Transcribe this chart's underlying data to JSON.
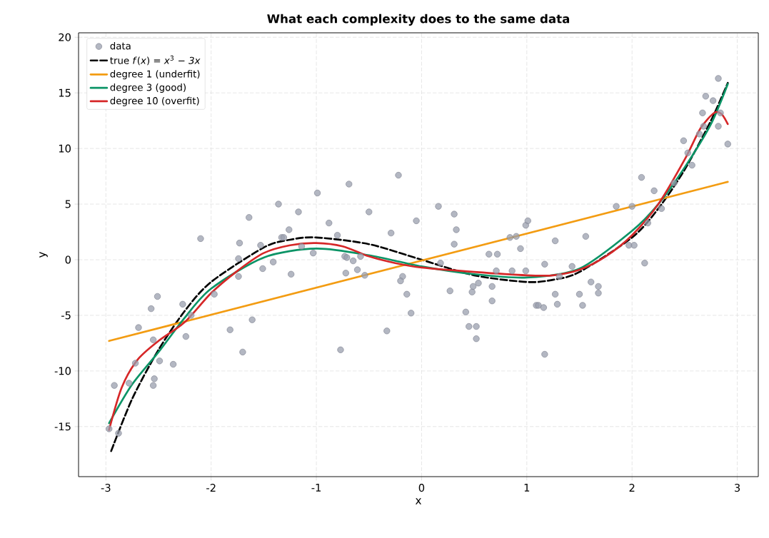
{
  "chart_data": {
    "type": "scatter",
    "title": "What each complexity does to the same data",
    "xlabel": "x",
    "ylabel": "y",
    "xlim": [
      -3.26,
      3.2
    ],
    "ylim": [
      -19.5,
      20.4
    ],
    "xticks": [
      -3,
      -2,
      -1,
      0,
      1,
      2,
      3
    ],
    "yticks": [
      -15,
      -10,
      -5,
      0,
      5,
      10,
      15,
      20
    ],
    "grid": true,
    "legend": "top left",
    "series": [
      {
        "name": "data",
        "marker": "circle",
        "color": "#9a9fae",
        "x": [
          -2.97,
          -2.92,
          -2.88,
          -2.78,
          -2.72,
          -2.69,
          -2.57,
          -2.55,
          -2.54,
          -2.55,
          -2.49,
          -2.51,
          -2.36,
          -2.27,
          -2.24,
          -2.19,
          -2.1,
          -1.97,
          -1.82,
          -1.64,
          -1.36,
          -1.17,
          -1.26,
          -1.33,
          -1.31,
          -1.73,
          -1.53,
          -1.74,
          -1.41,
          -1.51,
          -1.24,
          -1.74,
          -1.61,
          -1.7,
          -0.99,
          -0.69,
          -0.22,
          -0.88,
          -0.5,
          -0.8,
          -1.14,
          -1.03,
          -0.29,
          -0.05,
          0.16,
          0.31,
          0.33,
          0.31,
          -0.73,
          -0.71,
          -0.65,
          -0.58,
          -0.61,
          -0.72,
          -0.54,
          -0.18,
          -0.2,
          -0.14,
          -0.1,
          -0.33,
          -0.77,
          0.18,
          0.27,
          0.42,
          0.45,
          0.52,
          0.52,
          0.48,
          0.49,
          0.54,
          0.67,
          0.67,
          0.71,
          0.64,
          0.72,
          0.84,
          0.9,
          0.94,
          0.99,
          1.01,
          0.86,
          0.99,
          1.09,
          1.27,
          1.56,
          1.85,
          2.0,
          2.09,
          2.21,
          2.28,
          2.15,
          1.97,
          2.02,
          2.12,
          2.57,
          1.17,
          1.43,
          1.31,
          1.61,
          1.68,
          1.68,
          1.27,
          1.5,
          1.11,
          1.16,
          1.29,
          1.53,
          1.17,
          2.82,
          2.7,
          2.77,
          2.67,
          2.84,
          2.82,
          2.68,
          2.64,
          2.49,
          2.91,
          2.53,
          2.4
        ],
        "values": [
          -15.2,
          -11.3,
          -15.6,
          -11.1,
          -9.3,
          -6.1,
          -4.4,
          -7.2,
          -10.7,
          -11.3,
          -9.1,
          -3.3,
          -9.4,
          -4.0,
          -6.9,
          -5.0,
          1.9,
          -3.1,
          -6.3,
          3.8,
          5.0,
          4.3,
          2.7,
          2.0,
          2.0,
          1.5,
          1.3,
          0.1,
          -0.2,
          -0.8,
          -1.3,
          -1.5,
          -5.4,
          -8.3,
          6.0,
          6.8,
          7.6,
          3.3,
          4.3,
          2.2,
          1.2,
          0.6,
          2.4,
          3.5,
          4.8,
          4.1,
          2.7,
          1.4,
          0.3,
          0.2,
          -0.1,
          0.3,
          -0.9,
          -1.2,
          -1.4,
          -1.5,
          -1.9,
          -3.1,
          -4.8,
          -6.4,
          -8.1,
          -0.3,
          -2.8,
          -4.7,
          -6.0,
          -6.0,
          -7.1,
          -2.9,
          -2.4,
          -2.1,
          -2.4,
          -3.7,
          -1.0,
          0.5,
          0.5,
          2.0,
          2.1,
          1.0,
          3.1,
          3.5,
          -1.0,
          -1.0,
          -4.1,
          1.7,
          2.1,
          4.8,
          4.8,
          7.4,
          6.2,
          4.6,
          3.3,
          1.3,
          1.3,
          -0.3,
          8.5,
          -0.4,
          -0.6,
          -1.5,
          -2.0,
          -2.4,
          -3.0,
          -3.1,
          -3.1,
          -4.1,
          -4.3,
          -4.0,
          -4.1,
          -8.5,
          16.3,
          14.7,
          14.3,
          13.2,
          13.2,
          12.0,
          12.0,
          11.3,
          10.7,
          10.4,
          9.6,
          6.9
        ]
      },
      {
        "name": "true *f*(*x*) = *x*$^{3}$ − *3x*",
        "type": "line",
        "line_style": "dashed",
        "color": "#000000",
        "x": [
          -2.95,
          -2.75,
          -2.5,
          -2.25,
          -2,
          -1.5,
          -1.25,
          -1,
          -0.5,
          0,
          0.5,
          1,
          1.25,
          1.5,
          2,
          2.25,
          2.5,
          2.75,
          2.91
        ],
        "values": [
          -17.2,
          -12.5,
          -8.1,
          -4.6,
          -2.0,
          1.1,
          1.8,
          2.0,
          1.4,
          0.0,
          -1.4,
          -2.0,
          -1.8,
          -1.1,
          2.0,
          4.6,
          8.1,
          12.5,
          15.9
        ]
      },
      {
        "name": "degree 1 (underfit)",
        "type": "line",
        "line_style": "solid",
        "color": "#f39c12",
        "x": [
          -2.97,
          2.91
        ],
        "values": [
          -7.3,
          7.0
        ]
      },
      {
        "name": "degree 3 (good)",
        "type": "line",
        "line_style": "solid",
        "color": "#0b9466",
        "x": [
          -2.97,
          -2.75,
          -2.5,
          -2.25,
          -2,
          -1.5,
          -1,
          -0.5,
          0,
          0.5,
          1,
          1.5,
          2,
          2.25,
          2.5,
          2.75,
          2.91
        ],
        "values": [
          -14.7,
          -11.2,
          -8.3,
          -5.2,
          -2.6,
          0.2,
          1.0,
          0.4,
          -0.6,
          -1.3,
          -1.6,
          -0.8,
          2.6,
          5.0,
          8.3,
          12.2,
          15.8
        ]
      },
      {
        "name": "degree 10 (overfit)",
        "type": "line",
        "line_style": "solid",
        "color": "#d62728",
        "x": [
          -2.97,
          -2.85,
          -2.7,
          -2.5,
          -2.25,
          -2,
          -1.75,
          -1.5,
          -1.25,
          -1,
          -0.75,
          -0.5,
          -0.25,
          0,
          0.5,
          1,
          1.25,
          1.5,
          1.75,
          2,
          2.25,
          2.5,
          2.65,
          2.78,
          2.85,
          2.91
        ],
        "values": [
          -15.3,
          -11.5,
          -9.0,
          -7.3,
          -5.6,
          -3.0,
          -1.0,
          0.6,
          1.3,
          1.5,
          1.2,
          0.3,
          -0.3,
          -0.7,
          -1.1,
          -1.4,
          -1.4,
          -0.9,
          0.3,
          2.2,
          5.0,
          9.0,
          11.8,
          13.2,
          13.1,
          12.2
        ]
      }
    ]
  }
}
